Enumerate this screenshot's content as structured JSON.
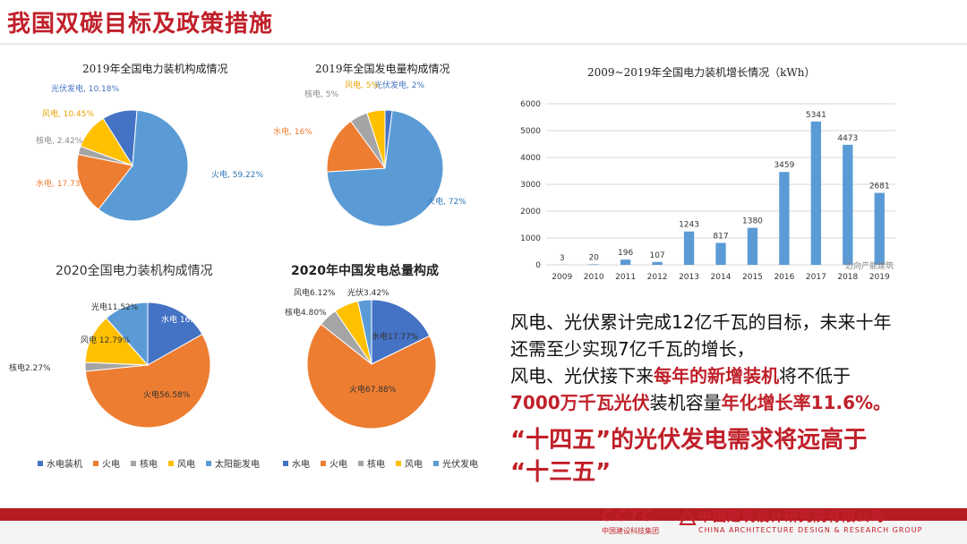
{
  "title": "我国双碳目标及政策措施",
  "colors": {
    "water": "#ed7d31",
    "thermal": "#5b9bd5",
    "nuclear": "#a5a5a5",
    "wind": "#ffc000",
    "solar": "#4472c4",
    "accent": "#c0202a"
  },
  "chart_data": [
    {
      "type": "pie",
      "title": "2019年全国电力装机构成情况",
      "slices": [
        {
          "label": "光伏发电, 10.18%",
          "value": 10.18,
          "color": "#4472c4"
        },
        {
          "label": "火电, 59.22%",
          "value": 59.22,
          "color": "#5b9bd5"
        },
        {
          "label": "水电, 17.73%",
          "value": 17.73,
          "color": "#ed7d31"
        },
        {
          "label": "核电, 2.42%",
          "value": 2.42,
          "color": "#a5a5a5"
        },
        {
          "label": "风电, 10.45%",
          "value": 10.45,
          "color": "#ffc000"
        }
      ]
    },
    {
      "type": "pie",
      "title": "2019年全国发电量构成情况",
      "slices": [
        {
          "label": "光伏发电, 2%",
          "value": 2,
          "color": "#4472c4"
        },
        {
          "label": "火电, 72%",
          "value": 72,
          "color": "#5b9bd5"
        },
        {
          "label": "水电, 16%",
          "value": 16,
          "color": "#ed7d31"
        },
        {
          "label": "核电, 5%",
          "value": 5,
          "color": "#a5a5a5"
        },
        {
          "label": "风电, 5%",
          "value": 5,
          "color": "#ffc000"
        }
      ]
    },
    {
      "type": "pie",
      "title": "2020全国电力装机构成情况",
      "slices": [
        {
          "label": "水电 16.82%",
          "value": 16.82,
          "color": "#4472c4"
        },
        {
          "label": "火电56.58%",
          "value": 56.58,
          "color": "#ed7d31"
        },
        {
          "label": "核电2.27%",
          "value": 2.27,
          "color": "#a5a5a5"
        },
        {
          "label": "风电 12.79%",
          "value": 12.79,
          "color": "#ffc000"
        },
        {
          "label": "光电11.52%",
          "value": 11.52,
          "color": "#5b9bd5"
        }
      ],
      "legend": [
        "水电装机",
        "火电",
        "核电",
        "风电",
        "太阳能发电"
      ]
    },
    {
      "type": "pie",
      "title": "2020年中国发电总量构成",
      "slices": [
        {
          "label": "水电17.77%",
          "value": 17.77,
          "color": "#4472c4"
        },
        {
          "label": "火电67.88%",
          "value": 67.88,
          "color": "#ed7d31"
        },
        {
          "label": "核电4.80%",
          "value": 4.8,
          "color": "#a5a5a5"
        },
        {
          "label": "风电6.12%",
          "value": 6.12,
          "color": "#ffc000"
        },
        {
          "label": "光伏3.42%",
          "value": 3.42,
          "color": "#5b9bd5"
        }
      ],
      "legend": [
        "水电",
        "火电",
        "核电",
        "风电",
        "光伏发电"
      ]
    },
    {
      "type": "bar",
      "title": "2009~2019年全国电力装机增长情况（kWh）",
      "categories": [
        "2009",
        "2010",
        "2011",
        "2012",
        "2013",
        "2014",
        "2015",
        "2016",
        "2017",
        "2018",
        "2019"
      ],
      "values": [
        3,
        20,
        196,
        107,
        1243,
        817,
        1380,
        3459,
        5341,
        4473,
        2681
      ],
      "ylim": [
        0,
        6000
      ],
      "yticks": [
        0,
        1000,
        2000,
        3000,
        4000,
        5000,
        6000
      ],
      "color": "#5b9bd5",
      "grid": true,
      "watermark": "迈向产能建筑"
    }
  ],
  "notes": {
    "line1": "风电、光伏累计完成12亿千瓦的目标，未来十年",
    "line2": "还需至少实现7亿千瓦的增长，",
    "line3a": "风电、光伏接下来",
    "line3b": "每年的新增装机",
    "line3c": "将不低于",
    "line4a": "7000万千瓦光伏",
    "line4b": "装机容量",
    "line4c": "年化增长率11.6%。",
    "big1": "“十四五”的光伏发电需求将远高于",
    "big2": "“十三五”"
  },
  "footer": {
    "cctc": "CCTC",
    "cctc_sub": "中国建设科技集团",
    "company": "中国建筑设计研究院有限公司",
    "company_en": "CHINA ARCHITECTURE DESIGN & RESEARCH GROUP"
  }
}
